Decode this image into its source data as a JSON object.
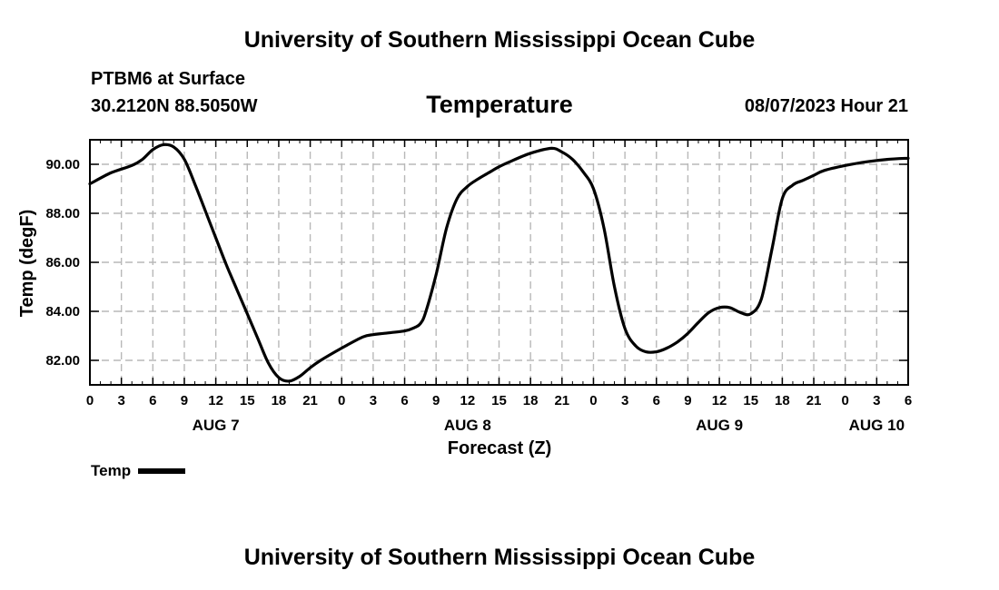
{
  "header": {
    "title_top": "University of Southern Mississippi Ocean Cube",
    "station": "PTBM6 at Surface",
    "coords": "30.2120N  88.5050W",
    "panel_title": "Temperature",
    "timestamp": "08/07/2023 Hour 21",
    "title_bottom": "University of Southern Mississippi Ocean Cube"
  },
  "legend": {
    "label": "Temp",
    "color": "#000000"
  },
  "chart_data": {
    "type": "line",
    "title": "Temperature",
    "xlabel": "Forecast (Z)",
    "ylabel": "Temp (degF)",
    "xlim": [
      0,
      78
    ],
    "ylim": [
      81,
      91
    ],
    "grid": true,
    "legend_position": "bottom-left",
    "x_tick_values": [
      0,
      3,
      6,
      9,
      12,
      15,
      18,
      21,
      24,
      27,
      30,
      33,
      36,
      39,
      42,
      45,
      48,
      51,
      54,
      57,
      60,
      63,
      66,
      69,
      72,
      75,
      78
    ],
    "x_tick_labels": [
      "0",
      "3",
      "6",
      "9",
      "12",
      "15",
      "18",
      "21",
      "0",
      "3",
      "6",
      "9",
      "12",
      "15",
      "18",
      "21",
      "0",
      "3",
      "6",
      "9",
      "12",
      "15",
      "18",
      "21",
      "0",
      "3",
      "6"
    ],
    "day_labels": [
      {
        "x": 12,
        "label": "AUG 7"
      },
      {
        "x": 36,
        "label": "AUG 8"
      },
      {
        "x": 60,
        "label": "AUG 9"
      },
      {
        "x": 75,
        "label": "AUG 10"
      }
    ],
    "y_tick_values": [
      82,
      84,
      86,
      88,
      90
    ],
    "y_tick_labels": [
      "82.00",
      "84.00",
      "86.00",
      "88.00",
      "90.00"
    ],
    "series": [
      {
        "name": "Temp",
        "x": [
          0,
          2,
          4,
          5,
          6,
          7,
          8,
          9,
          10,
          11,
          12,
          13,
          14,
          15,
          16,
          17,
          18,
          19,
          20,
          21,
          22,
          24,
          26,
          27,
          28,
          30,
          31,
          31.5,
          32,
          33,
          34,
          35,
          36,
          37,
          38,
          39,
          40,
          42,
          44,
          45,
          46,
          47,
          48,
          49,
          50,
          51,
          52,
          53,
          54,
          55,
          56,
          57,
          58,
          59,
          60,
          61,
          62,
          63,
          64,
          65,
          66,
          67,
          68,
          69,
          70,
          72,
          74,
          76,
          78
        ],
        "y": [
          89.2,
          89.65,
          89.95,
          90.2,
          90.6,
          90.8,
          90.7,
          90.2,
          89.2,
          88.1,
          87.0,
          85.9,
          84.9,
          83.9,
          82.9,
          81.9,
          81.3,
          81.15,
          81.35,
          81.7,
          82.0,
          82.5,
          82.95,
          83.05,
          83.1,
          83.2,
          83.35,
          83.5,
          83.95,
          85.5,
          87.4,
          88.6,
          89.1,
          89.4,
          89.65,
          89.9,
          90.1,
          90.45,
          90.65,
          90.5,
          90.2,
          89.7,
          89.0,
          87.4,
          85.0,
          83.3,
          82.6,
          82.35,
          82.35,
          82.5,
          82.75,
          83.1,
          83.55,
          83.95,
          84.15,
          84.15,
          83.95,
          83.9,
          84.5,
          86.5,
          88.6,
          89.15,
          89.35,
          89.55,
          89.75,
          89.95,
          90.1,
          90.2,
          90.25
        ]
      }
    ]
  }
}
